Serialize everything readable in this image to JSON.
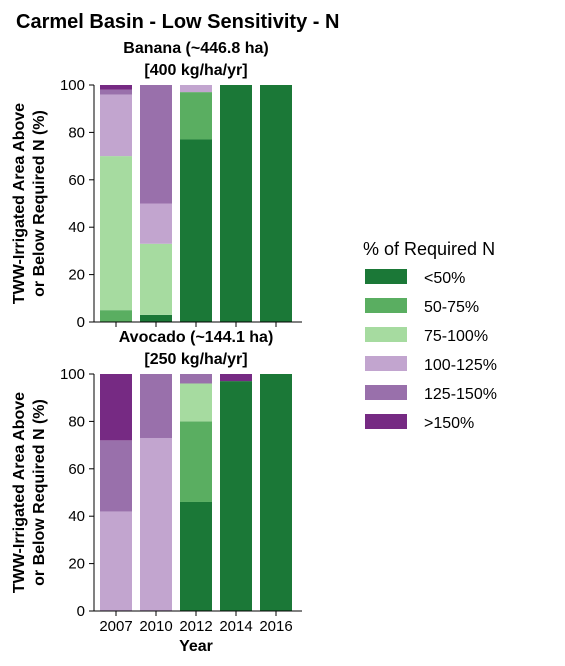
{
  "figure": {
    "title": "Carmel Basin - Low Sensitivity - N"
  },
  "legend": {
    "title": "% of Required N",
    "items": [
      {
        "label": "<50%",
        "color": "#1b7837"
      },
      {
        "label": "50-75%",
        "color": "#5aae61"
      },
      {
        "label": "75-100%",
        "color": "#a6dba0"
      },
      {
        "label": "100-125%",
        "color": "#c2a5cf"
      },
      {
        "label": "125-150%",
        "color": "#9970ab"
      },
      {
        "label": ">150%",
        "color": "#762a83"
      }
    ]
  },
  "chart_data": [
    {
      "type": "bar",
      "stacked": true,
      "title": "Banana (~446.8 ha)\n[400 kg/ha/yr]",
      "title_lines": [
        "Banana (~446.8 ha)",
        "[400 kg/ha/yr]"
      ],
      "ylabel": "TWW-Irrigated Area Above or Below Required N (%)",
      "ylabel_lines": [
        "TWW-Irrigated Area Above",
        "or Below Required N (%)"
      ],
      "xlabel": "",
      "ylim": [
        0,
        100
      ],
      "yticks": [
        0,
        20,
        40,
        60,
        80,
        100
      ],
      "categories": [
        "2007",
        "2010",
        "2012",
        "2014",
        "2016"
      ],
      "show_xticklabels": false,
      "series": [
        {
          "name": "<50%",
          "values": [
            0,
            3,
            77,
            100,
            100
          ]
        },
        {
          "name": "50-75%",
          "values": [
            5,
            0,
            20,
            0,
            0
          ]
        },
        {
          "name": "75-100%",
          "values": [
            65,
            30,
            0,
            0,
            0
          ]
        },
        {
          "name": "100-125%",
          "values": [
            26,
            17,
            3,
            0,
            0
          ]
        },
        {
          "name": "125-150%",
          "values": [
            2,
            50,
            0,
            0,
            0
          ]
        },
        {
          "name": ">150%",
          "values": [
            2,
            0,
            0,
            0,
            0
          ]
        }
      ]
    },
    {
      "type": "bar",
      "stacked": true,
      "title": "Avocado (~144.1 ha)\n[250 kg/ha/yr]",
      "title_lines": [
        "Avocado (~144.1 ha)",
        "[250 kg/ha/yr]"
      ],
      "ylabel": "TWW-Irrigated Area Above or Below Required N (%)",
      "ylabel_lines": [
        "TWW-Irrigated Area Above",
        "or Below Required N (%)"
      ],
      "xlabel": "Year",
      "ylim": [
        0,
        100
      ],
      "yticks": [
        0,
        20,
        40,
        60,
        80,
        100
      ],
      "categories": [
        "2007",
        "2010",
        "2012",
        "2014",
        "2016"
      ],
      "show_xticklabels": true,
      "series": [
        {
          "name": "<50%",
          "values": [
            0,
            0,
            46,
            97,
            100
          ]
        },
        {
          "name": "50-75%",
          "values": [
            0,
            0,
            34,
            0,
            0
          ]
        },
        {
          "name": "75-100%",
          "values": [
            0,
            0,
            16,
            0,
            0
          ]
        },
        {
          "name": "100-125%",
          "values": [
            42,
            73,
            0,
            0,
            0
          ]
        },
        {
          "name": "125-150%",
          "values": [
            30,
            27,
            4,
            0,
            0
          ]
        },
        {
          "name": ">150%",
          "values": [
            28,
            0,
            0,
            3,
            0
          ]
        }
      ]
    }
  ]
}
